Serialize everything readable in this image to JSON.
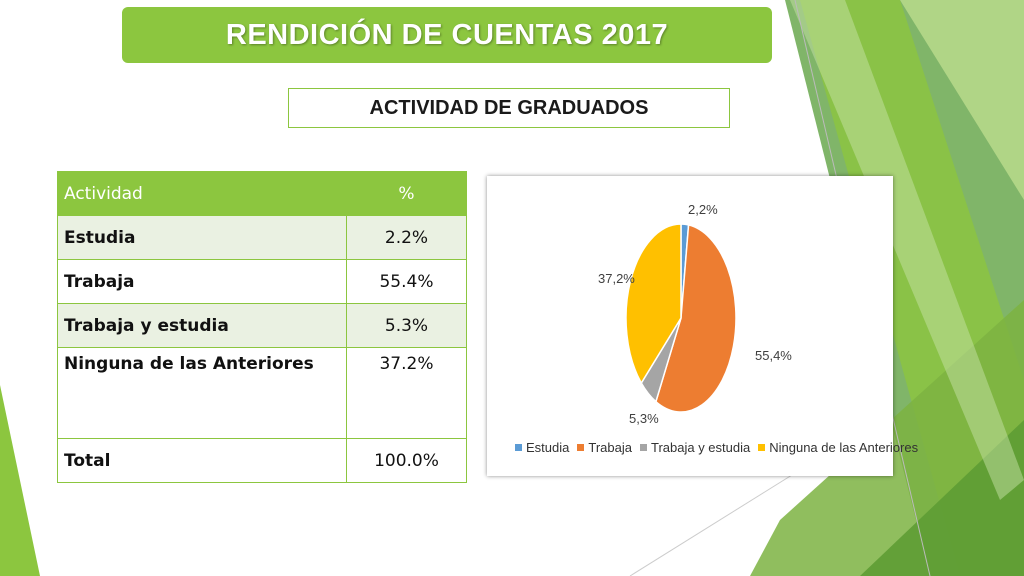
{
  "title": "RENDICIÓN DE CUENTAS 2017",
  "subtitle": "ACTIVIDAD DE GRADUADOS",
  "table": {
    "headers": [
      "Actividad",
      "%"
    ],
    "rows": [
      {
        "label": "Estudia",
        "value": "2.2%"
      },
      {
        "label": "Trabaja",
        "value": "55.4%"
      },
      {
        "label": "Trabaja y estudia",
        "value": "5.3%"
      },
      {
        "label": "Ninguna de las Anteriores",
        "value": "37.2%"
      }
    ],
    "total": {
      "label": "Total",
      "value": "100.0%"
    }
  },
  "colors": {
    "accent_green": "#8cc63f",
    "estudia": "#5b9bd5",
    "trabaja": "#ed7d31",
    "trabaja_y_estudia": "#a5a5a5",
    "ninguna": "#ffc000"
  },
  "chart_data": {
    "type": "pie",
    "categories": [
      "Estudia",
      "Trabaja",
      "Trabaja y estudia",
      "Ninguna de las Anteriores"
    ],
    "values": [
      2.2,
      55.4,
      5.3,
      37.2
    ],
    "data_labels": [
      "2,2%",
      "55,4%",
      "5,3%",
      "37,2%"
    ],
    "colors": [
      "#5b9bd5",
      "#ed7d31",
      "#a5a5a5",
      "#ffc000"
    ],
    "legend_position": "bottom"
  }
}
